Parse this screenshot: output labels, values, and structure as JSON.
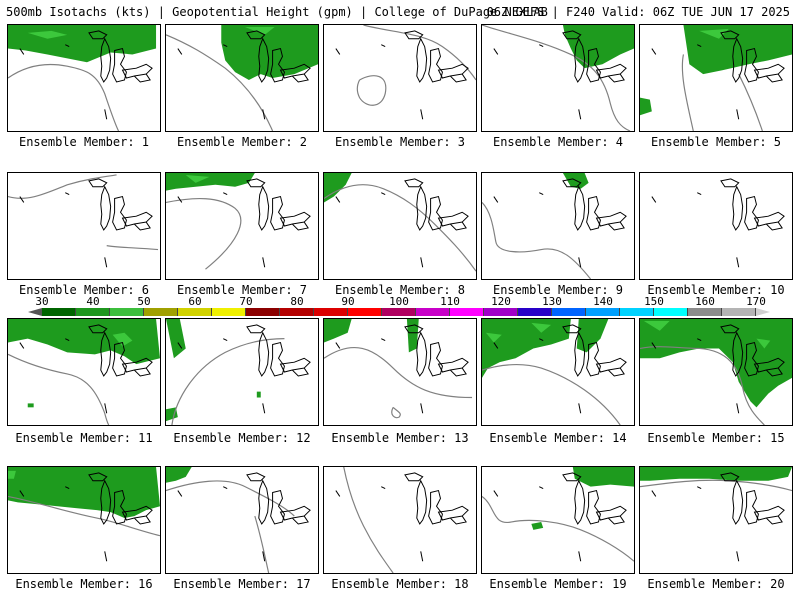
{
  "header": {
    "title_left": "500mb Isotachs (kts) | Geopotential Height (gpm) | College of DuPage NEXLAB",
    "title_right": "06Z GEFS | F240 Valid: 06Z TUE JUN 17 2025"
  },
  "colorbar": {
    "labels": [
      "30",
      "40",
      "50",
      "60",
      "70",
      "80",
      "90",
      "100",
      "110",
      "120",
      "130",
      "140",
      "150",
      "160",
      "170"
    ],
    "colors": [
      "#006400",
      "#1e961e",
      "#3cbe3c",
      "#a0a000",
      "#d2d200",
      "#f0f000",
      "#8b0000",
      "#b40000",
      "#dc0000",
      "#ff0000",
      "#b00060",
      "#c800c8",
      "#ff00ff",
      "#a000c8",
      "#2800c8",
      "#0064ff",
      "#00a0ff",
      "#00d2ff",
      "#00ffff",
      "#8c8c8c",
      "#b4b4b4"
    ],
    "left_arrow_color": "#ffffff",
    "right_arrow_color": "#d0d0d0"
  },
  "members": [
    {
      "caption": "Ensemble Member: 1"
    },
    {
      "caption": "Ensemble Member: 2"
    },
    {
      "caption": "Ensemble Member: 3"
    },
    {
      "caption": "Ensemble Member: 4"
    },
    {
      "caption": "Ensemble Member: 5"
    },
    {
      "caption": "Ensemble Member: 6"
    },
    {
      "caption": "Ensemble Member: 7"
    },
    {
      "caption": "Ensemble Member: 8"
    },
    {
      "caption": "Ensemble Member: 9"
    },
    {
      "caption": "Ensemble Member: 10"
    },
    {
      "caption": "Ensemble Member: 11"
    },
    {
      "caption": "Ensemble Member: 12"
    },
    {
      "caption": "Ensemble Member: 13"
    },
    {
      "caption": "Ensemble Member: 14"
    },
    {
      "caption": "Ensemble Member: 15"
    },
    {
      "caption": "Ensemble Member: 16"
    },
    {
      "caption": "Ensemble Member: 17"
    },
    {
      "caption": "Ensemble Member: 18"
    },
    {
      "caption": "Ensemble Member: 19"
    },
    {
      "caption": "Ensemble Member: 20"
    }
  ]
}
